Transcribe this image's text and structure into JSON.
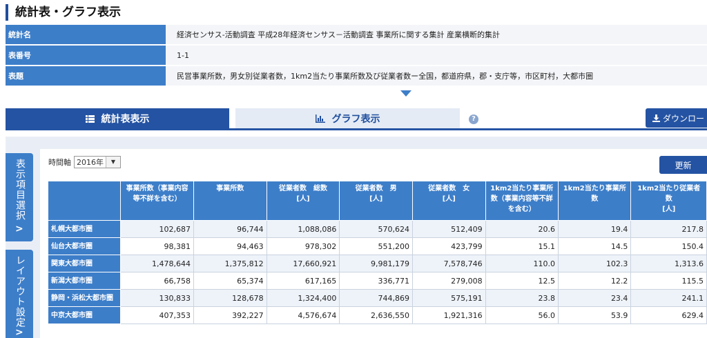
{
  "page_title": "統計表・グラフ表示",
  "info": [
    {
      "key": "統計名",
      "value": "経済センサス-活動調査 平成28年経済センサス－活動調査 事業所に関する集計 産業横断的集計"
    },
    {
      "key": "表番号",
      "value": "1-1"
    },
    {
      "key": "表題",
      "value": "民営事業所数，男女別従業者数，1km2当たり事業所数及び従業者数ー全国，都道府県，郡・支庁等，市区町村，大都市圏"
    }
  ],
  "tabs": {
    "table": "統計表表示",
    "graph": "グラフ表示"
  },
  "download_label": "ダウンロー",
  "sidebar": {
    "display_items": "表示項目選択",
    "layout": "レイアウト設定"
  },
  "time_axis": {
    "label": "時間軸",
    "selected": "2016年"
  },
  "update_label": "更新",
  "table": {
    "headers": [
      "事業所数（事業内容等不詳を含む）",
      "事業所数",
      "従業者数　総数\n[人]",
      "従業者数　男\n[人]",
      "従業者数　女\n[人]",
      "1km2当たり事業所数（事業内容等不詳を含む）",
      "1km2当たり事業所数",
      "1km2当たり従業者数\n[人]"
    ],
    "rows": [
      {
        "label": "札幌大都市圏",
        "values": [
          "102,687",
          "96,744",
          "1,088,086",
          "570,624",
          "512,409",
          "20.6",
          "19.4",
          "217.8"
        ]
      },
      {
        "label": "仙台大都市圏",
        "values": [
          "98,381",
          "94,463",
          "978,302",
          "551,200",
          "423,799",
          "15.1",
          "14.5",
          "150.4"
        ]
      },
      {
        "label": "関東大都市圏",
        "values": [
          "1,478,644",
          "1,375,812",
          "17,660,921",
          "9,981,179",
          "7,578,746",
          "110.0",
          "102.3",
          "1,313.6"
        ]
      },
      {
        "label": "新潟大都市圏",
        "values": [
          "66,758",
          "65,374",
          "617,165",
          "336,771",
          "279,008",
          "12.5",
          "12.2",
          "115.5"
        ]
      },
      {
        "label": "静岡・浜松大都市圏",
        "values": [
          "130,833",
          "128,678",
          "1,324,400",
          "744,869",
          "575,191",
          "23.8",
          "23.4",
          "241.1"
        ]
      },
      {
        "label": "中京大都市圏",
        "values": [
          "407,353",
          "392,227",
          "4,576,674",
          "2,636,550",
          "1,921,316",
          "56.0",
          "53.9",
          "629.4"
        ]
      }
    ]
  }
}
